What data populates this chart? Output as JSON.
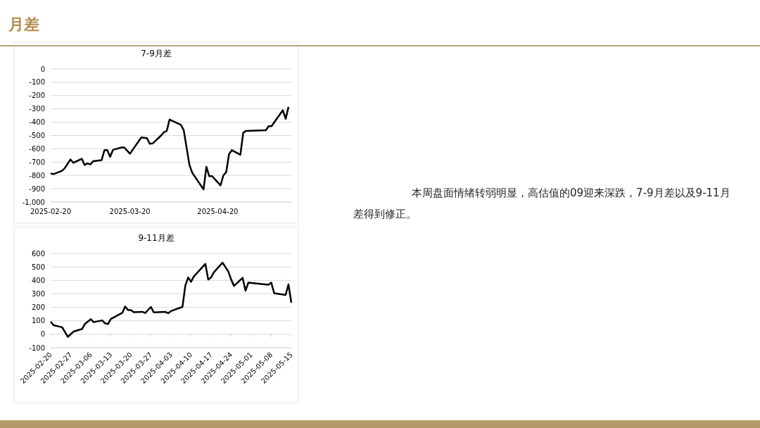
{
  "chart_data": [
    {
      "type": "line",
      "title": "7-9月差",
      "x": [
        "2025-02-20",
        "2025-02-21",
        "2025-02-24",
        "2025-02-25",
        "2025-02-27",
        "2025-02-28",
        "2025-03-03",
        "2025-03-04",
        "2025-03-05",
        "2025-03-06",
        "2025-03-07",
        "2025-03-10",
        "2025-03-11",
        "2025-03-12",
        "2025-03-13",
        "2025-03-14",
        "2025-03-17",
        "2025-03-18",
        "2025-03-20",
        "2025-03-24",
        "2025-03-26",
        "2025-03-27",
        "2025-03-28",
        "2025-03-31",
        "2025-04-01",
        "2025-04-02",
        "2025-04-03",
        "2025-04-07",
        "2025-04-08",
        "2025-04-10",
        "2025-04-11",
        "2025-04-15",
        "2025-04-16",
        "2025-04-17",
        "2025-04-18",
        "2025-04-21",
        "2025-04-22",
        "2025-04-23",
        "2025-04-24",
        "2025-04-25",
        "2025-04-28",
        "2025-04-29",
        "2025-04-30",
        "2025-05-07",
        "2025-05-08",
        "2025-05-09",
        "2025-05-13",
        "2025-05-14",
        "2025-05-15"
      ],
      "series": [
        {
          "color": "#000000",
          "values": [
            -785,
            -790,
            -765,
            -745,
            -680,
            -705,
            -675,
            -722,
            -710,
            -718,
            -693,
            -685,
            -610,
            -610,
            -660,
            -608,
            -590,
            -590,
            -637,
            -515,
            -520,
            -562,
            -560,
            -500,
            -475,
            -465,
            -380,
            -420,
            -460,
            -720,
            -780,
            -905,
            -735,
            -805,
            -805,
            -875,
            -800,
            -775,
            -640,
            -610,
            -645,
            -480,
            -465,
            -460,
            -430,
            -430,
            -310,
            -375,
            -285
          ]
        }
      ],
      "xlim": [
        "2025-02-20",
        "2025-05-16"
      ],
      "xticks": [
        {
          "value": "2025-02-20",
          "label": "2025-02-20"
        },
        {
          "value": "2025-03-20",
          "label": "2025-03-20"
        },
        {
          "value": "2025-04-20",
          "label": "2025-04-20"
        }
      ],
      "ylim": [
        -1000,
        0
      ],
      "yticks": [
        {
          "value": -1000,
          "label": "-1,000"
        },
        -900,
        -800,
        -700,
        -600,
        -500,
        -400,
        -300,
        -200,
        -100,
        0
      ],
      "grid": "y",
      "marker": "none",
      "line_style": "solid"
    },
    {
      "type": "line",
      "title": "9-11月差",
      "x": [
        "2025-02-20",
        "2025-02-21",
        "2025-02-24",
        "2025-02-26",
        "2025-02-28",
        "2025-03-03",
        "2025-03-04",
        "2025-03-06",
        "2025-03-07",
        "2025-03-10",
        "2025-03-11",
        "2025-03-12",
        "2025-03-13",
        "2025-03-17",
        "2025-03-18",
        "2025-03-19",
        "2025-03-20",
        "2025-03-21",
        "2025-03-24",
        "2025-03-25",
        "2025-03-27",
        "2025-03-28",
        "2025-04-01",
        "2025-04-02",
        "2025-04-03",
        "2025-04-07",
        "2025-04-08",
        "2025-04-09",
        "2025-04-10",
        "2025-04-11",
        "2025-04-15",
        "2025-04-16",
        "2025-04-17",
        "2025-04-18",
        "2025-04-21",
        "2025-04-23",
        "2025-04-24",
        "2025-04-25",
        "2025-04-28",
        "2025-04-29",
        "2025-04-30",
        "2025-05-07",
        "2025-05-08",
        "2025-05-09",
        "2025-05-13",
        "2025-05-14",
        "2025-05-15"
      ],
      "series": [
        {
          "color": "#000000",
          "values": [
            94,
            67,
            52,
            -19,
            20,
            40,
            78,
            112,
            90,
            103,
            81,
            76,
            114,
            159,
            206,
            180,
            180,
            164,
            167,
            158,
            203,
            162,
            167,
            156,
            172,
            203,
            362,
            422,
            390,
            430,
            522,
            406,
            422,
            461,
            531,
            466,
            406,
            359,
            419,
            323,
            383,
            367,
            383,
            305,
            292,
            370,
            234
          ]
        }
      ],
      "xlim": [
        "2025-02-20",
        "2025-05-15"
      ],
      "xticks": [
        "2025-02-20",
        "2025-02-27",
        "2025-03-06",
        "2025-03-13",
        "2025-03-20",
        "2025-03-27",
        "2025-04-03",
        "2025-04-10",
        "2025-04-17",
        "2025-04-24",
        "2025-05-01",
        "2025-05-08",
        "2025-05-15"
      ],
      "ylim": [
        -100,
        600
      ],
      "yticks": [
        -100,
        0,
        100,
        200,
        300,
        400,
        500,
        600
      ],
      "grid": "y",
      "marker": "none",
      "line_style": "solid"
    },
    {
      "type": "other",
      "title": "月差",
      "annotations": [
        "本周盘面情绪转弱明显，高估值的09迎来深跌，7-9月差以及9-11月差得到修正。"
      ]
    }
  ]
}
